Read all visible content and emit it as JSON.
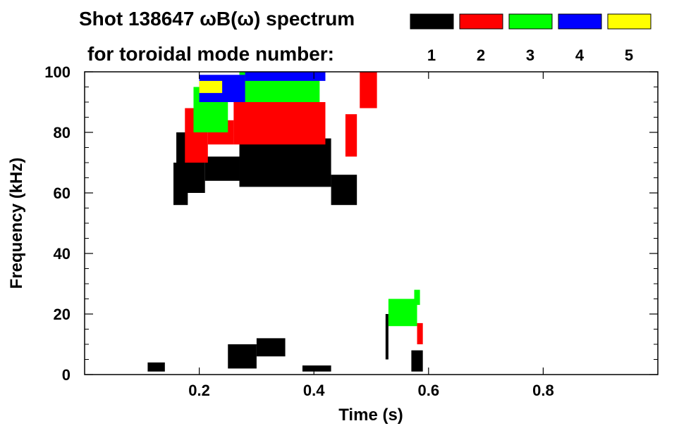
{
  "chart_data": {
    "type": "heatmap",
    "title_line1": "Shot 138647 ωB(ω) spectrum",
    "title_line2": "for toroidal mode number:",
    "xlabel": "Time (s)",
    "ylabel": "Frequency (kHz)",
    "xlim": [
      0.0,
      1.0
    ],
    "ylim": [
      0,
      100
    ],
    "x_ticks": [
      0.2,
      0.4,
      0.6,
      0.8
    ],
    "x_tick_labels": [
      "0.2",
      "0.4",
      "0.6",
      "0.8"
    ],
    "y_ticks": [
      0,
      20,
      40,
      60,
      80,
      100
    ],
    "y_tick_labels": [
      "0",
      "20",
      "40",
      "60",
      "80",
      "100"
    ],
    "legend": [
      {
        "mode": "1",
        "color": "#000000"
      },
      {
        "mode": "2",
        "color": "#ff0000"
      },
      {
        "mode": "3",
        "color": "#00ff00"
      },
      {
        "mode": "4",
        "color": "#0000ff"
      },
      {
        "mode": "5",
        "color": "#ffff00"
      }
    ],
    "series": [
      {
        "name": "n=1",
        "color": "#000000",
        "bands": [
          {
            "t0": 0.155,
            "t1": 0.18,
            "f0": 56,
            "f1": 70
          },
          {
            "t0": 0.16,
            "t1": 0.21,
            "f0": 60,
            "f1": 80
          },
          {
            "t0": 0.21,
            "t1": 0.27,
            "f0": 64,
            "f1": 72
          },
          {
            "t0": 0.27,
            "t1": 0.43,
            "f0": 62,
            "f1": 78
          },
          {
            "t0": 0.43,
            "t1": 0.475,
            "f0": 56,
            "f1": 66
          },
          {
            "t0": 0.11,
            "t1": 0.14,
            "f0": 1,
            "f1": 4
          },
          {
            "t0": 0.25,
            "t1": 0.3,
            "f0": 2,
            "f1": 10
          },
          {
            "t0": 0.3,
            "t1": 0.35,
            "f0": 6,
            "f1": 12
          },
          {
            "t0": 0.38,
            "t1": 0.43,
            "f0": 1,
            "f1": 3
          },
          {
            "t0": 0.525,
            "t1": 0.53,
            "f0": 5,
            "f1": 20
          },
          {
            "t0": 0.57,
            "t1": 0.59,
            "f0": 1,
            "f1": 8
          }
        ]
      },
      {
        "name": "n=2",
        "color": "#ff0000",
        "bands": [
          {
            "t0": 0.175,
            "t1": 0.215,
            "f0": 70,
            "f1": 88
          },
          {
            "t0": 0.215,
            "t1": 0.26,
            "f0": 76,
            "f1": 84
          },
          {
            "t0": 0.26,
            "t1": 0.42,
            "f0": 76,
            "f1": 90
          },
          {
            "t0": 0.455,
            "t1": 0.475,
            "f0": 72,
            "f1": 86
          },
          {
            "t0": 0.48,
            "t1": 0.51,
            "f0": 88,
            "f1": 100
          },
          {
            "t0": 0.58,
            "t1": 0.59,
            "f0": 10,
            "f1": 17
          }
        ]
      },
      {
        "name": "n=3",
        "color": "#00ff00",
        "bands": [
          {
            "t0": 0.19,
            "t1": 0.25,
            "f0": 80,
            "f1": 95
          },
          {
            "t0": 0.27,
            "t1": 0.41,
            "f0": 90,
            "f1": 100
          },
          {
            "t0": 0.53,
            "t1": 0.58,
            "f0": 16,
            "f1": 25
          },
          {
            "t0": 0.575,
            "t1": 0.585,
            "f0": 23,
            "f1": 28
          }
        ]
      },
      {
        "name": "n=4",
        "color": "#0000ff",
        "bands": [
          {
            "t0": 0.2,
            "t1": 0.28,
            "f0": 90,
            "f1": 99
          },
          {
            "t0": 0.28,
            "t1": 0.42,
            "f0": 97,
            "f1": 100
          }
        ]
      },
      {
        "name": "n=5",
        "color": "#ffff00",
        "bands": [
          {
            "t0": 0.2,
            "t1": 0.24,
            "f0": 93,
            "f1": 97
          }
        ]
      }
    ]
  }
}
